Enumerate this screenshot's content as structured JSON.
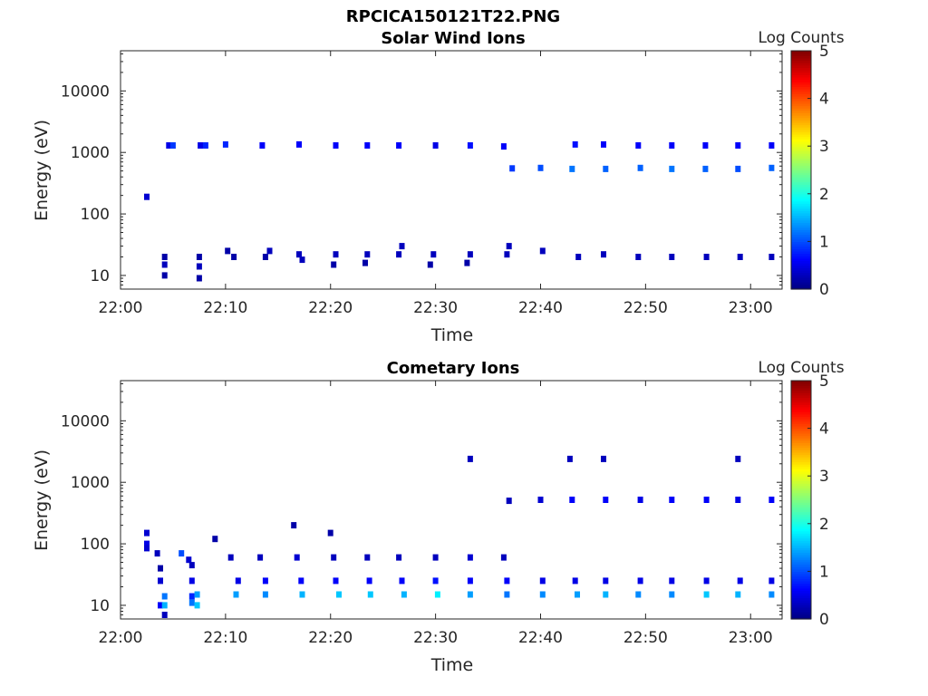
{
  "figure": {
    "title": "RPCICA150121T22.PNG"
  },
  "chart_data": [
    {
      "type": "heatmap",
      "title": "Solar Wind Ions",
      "xlabel": "Time",
      "ylabel": "Energy (eV)",
      "x_tick_labels": [
        "22:00",
        "22:10",
        "22:20",
        "22:30",
        "22:40",
        "22:50",
        "23:00"
      ],
      "x_ticks_min": [
        0,
        10,
        20,
        30,
        40,
        50,
        60
      ],
      "xlim_min": [
        0,
        63
      ],
      "y_tick_labels": [
        "10",
        "100",
        "1000",
        "10000"
      ],
      "y_ticks": [
        10,
        100,
        1000,
        10000
      ],
      "ylim": [
        6,
        45000
      ],
      "yscale": "log",
      "colorbar": {
        "label": "Log Counts",
        "range": [
          0,
          5
        ],
        "tick_labels": [
          "0",
          "1",
          "2",
          "3",
          "4",
          "5"
        ],
        "colormap": "jet"
      },
      "cells": [
        [
          2.5,
          190,
          0.4
        ],
        [
          4.2,
          10,
          0.2
        ],
        [
          4.2,
          15,
          0.3
        ],
        [
          4.2,
          20,
          0.2
        ],
        [
          7.5,
          9,
          0.2
        ],
        [
          7.5,
          14,
          0.3
        ],
        [
          7.5,
          20,
          0.2
        ],
        [
          4.6,
          1300,
          0.5
        ],
        [
          5.0,
          1300,
          0.9
        ],
        [
          7.6,
          1300,
          0.5
        ],
        [
          8.1,
          1300,
          0.8
        ],
        [
          10.0,
          1350,
          0.8
        ],
        [
          10.8,
          20,
          0.2
        ],
        [
          10.2,
          25,
          0.2
        ],
        [
          13.5,
          1300,
          0.6
        ],
        [
          13.8,
          20,
          0.2
        ],
        [
          14.2,
          25,
          0.3
        ],
        [
          17.0,
          1350,
          0.6
        ],
        [
          17.0,
          22,
          0.3
        ],
        [
          17.3,
          18,
          0.3
        ],
        [
          20.5,
          1300,
          0.6
        ],
        [
          20.5,
          22,
          0.3
        ],
        [
          20.3,
          15,
          0.2
        ],
        [
          23.5,
          1300,
          0.6
        ],
        [
          23.5,
          22,
          0.3
        ],
        [
          23.3,
          16,
          0.2
        ],
        [
          26.5,
          1300,
          0.6
        ],
        [
          26.5,
          22,
          0.3
        ],
        [
          26.8,
          30,
          0.3
        ],
        [
          30.0,
          1300,
          0.5
        ],
        [
          29.8,
          22,
          0.3
        ],
        [
          29.5,
          15,
          0.2
        ],
        [
          33.3,
          1300,
          0.7
        ],
        [
          33.3,
          22,
          0.3
        ],
        [
          33.0,
          16,
          0.2
        ],
        [
          36.5,
          1250,
          0.6
        ],
        [
          36.8,
          22,
          0.3
        ],
        [
          37.0,
          30,
          0.3
        ],
        [
          37.3,
          550,
          0.9
        ],
        [
          40.0,
          560,
          1.0
        ],
        [
          40.2,
          25,
          0.3
        ],
        [
          43.0,
          540,
          1.2
        ],
        [
          43.3,
          1350,
          0.7
        ],
        [
          43.6,
          20,
          0.3
        ],
        [
          46.2,
          540,
          1.1
        ],
        [
          46.0,
          1350,
          0.6
        ],
        [
          46.0,
          22,
          0.3
        ],
        [
          49.5,
          560,
          1.1
        ],
        [
          49.3,
          1300,
          0.6
        ],
        [
          49.3,
          20,
          0.3
        ],
        [
          52.5,
          540,
          1.2
        ],
        [
          52.5,
          1300,
          0.6
        ],
        [
          52.5,
          20,
          0.3
        ],
        [
          55.7,
          540,
          1.1
        ],
        [
          55.7,
          1300,
          0.6
        ],
        [
          55.8,
          20,
          0.3
        ],
        [
          58.8,
          540,
          1.0
        ],
        [
          58.8,
          1300,
          0.6
        ],
        [
          59.0,
          20,
          0.3
        ],
        [
          62.0,
          560,
          1.1
        ],
        [
          62.0,
          1300,
          0.6
        ],
        [
          62.0,
          20,
          0.3
        ]
      ]
    },
    {
      "type": "heatmap",
      "title": "Cometary Ions",
      "xlabel": "Time",
      "ylabel": "Energy (eV)",
      "x_tick_labels": [
        "22:00",
        "22:10",
        "22:20",
        "22:30",
        "22:40",
        "22:50",
        "23:00"
      ],
      "x_ticks_min": [
        0,
        10,
        20,
        30,
        40,
        50,
        60
      ],
      "xlim_min": [
        0,
        63
      ],
      "y_tick_labels": [
        "10",
        "100",
        "1000",
        "10000"
      ],
      "y_ticks": [
        10,
        100,
        1000,
        10000
      ],
      "ylim": [
        6,
        45000
      ],
      "yscale": "log",
      "colorbar": {
        "label": "Log Counts",
        "range": [
          0,
          5
        ],
        "tick_labels": [
          "0",
          "1",
          "2",
          "3",
          "4",
          "5"
        ],
        "colormap": "jet"
      },
      "cells": [
        [
          2.5,
          150,
          0.4
        ],
        [
          2.5,
          100,
          0.5
        ],
        [
          2.5,
          85,
          0.4
        ],
        [
          3.5,
          70,
          0.3
        ],
        [
          3.8,
          40,
          0.2
        ],
        [
          3.8,
          25,
          0.4
        ],
        [
          3.8,
          10,
          0.6
        ],
        [
          4.2,
          14,
          1.2
        ],
        [
          4.2,
          10,
          1.5
        ],
        [
          4.2,
          7,
          0.3
        ],
        [
          5.8,
          70,
          1.0
        ],
        [
          6.5,
          55,
          0.4
        ],
        [
          6.8,
          45,
          0.3
        ],
        [
          6.8,
          25,
          0.5
        ],
        [
          6.8,
          14,
          0.8
        ],
        [
          6.8,
          11,
          1.2
        ],
        [
          7.3,
          10,
          1.6
        ],
        [
          7.3,
          15,
          1.4
        ],
        [
          9.0,
          120,
          0.2
        ],
        [
          10.5,
          60,
          0.3
        ],
        [
          11.2,
          25,
          0.5
        ],
        [
          11.0,
          15,
          1.4
        ],
        [
          13.3,
          60,
          0.3
        ],
        [
          13.8,
          25,
          0.6
        ],
        [
          13.8,
          15,
          1.3
        ],
        [
          16.5,
          200,
          0.2
        ],
        [
          16.8,
          60,
          0.4
        ],
        [
          17.2,
          25,
          0.6
        ],
        [
          17.3,
          15,
          1.5
        ],
        [
          20.0,
          150,
          0.2
        ],
        [
          20.3,
          60,
          0.3
        ],
        [
          20.5,
          25,
          0.6
        ],
        [
          20.8,
          15,
          1.6
        ],
        [
          23.5,
          60,
          0.3
        ],
        [
          23.7,
          25,
          0.6
        ],
        [
          23.8,
          15,
          1.6
        ],
        [
          26.5,
          60,
          0.3
        ],
        [
          26.8,
          25,
          0.6
        ],
        [
          27.0,
          15,
          1.5
        ],
        [
          30.0,
          60,
          0.3
        ],
        [
          30.0,
          25,
          0.7
        ],
        [
          30.2,
          15,
          1.8
        ],
        [
          33.3,
          2400,
          0.3
        ],
        [
          33.3,
          60,
          0.4
        ],
        [
          33.3,
          25,
          0.6
        ],
        [
          33.3,
          15,
          1.4
        ],
        [
          36.5,
          60,
          0.3
        ],
        [
          36.8,
          25,
          0.6
        ],
        [
          36.8,
          15,
          1.2
        ],
        [
          37.0,
          500,
          0.3
        ],
        [
          40.0,
          520,
          0.4
        ],
        [
          40.2,
          25,
          0.5
        ],
        [
          40.2,
          15,
          1.3
        ],
        [
          42.8,
          2400,
          0.3
        ],
        [
          43.0,
          520,
          0.6
        ],
        [
          43.3,
          25,
          0.5
        ],
        [
          43.5,
          15,
          1.4
        ],
        [
          46.0,
          2400,
          0.3
        ],
        [
          46.2,
          520,
          0.6
        ],
        [
          46.2,
          25,
          0.5
        ],
        [
          46.2,
          15,
          1.5
        ],
        [
          49.5,
          520,
          0.5
        ],
        [
          49.5,
          25,
          0.5
        ],
        [
          49.3,
          15,
          1.3
        ],
        [
          52.5,
          520,
          0.6
        ],
        [
          52.5,
          25,
          0.5
        ],
        [
          52.5,
          15,
          1.3
        ],
        [
          55.8,
          520,
          0.6
        ],
        [
          55.8,
          25,
          0.5
        ],
        [
          55.8,
          15,
          1.6
        ],
        [
          58.8,
          2400,
          0.3
        ],
        [
          58.8,
          520,
          0.5
        ],
        [
          59.0,
          25,
          0.5
        ],
        [
          58.8,
          15,
          1.5
        ],
        [
          62.0,
          520,
          0.6
        ],
        [
          62.0,
          25,
          0.5
        ],
        [
          62.0,
          15,
          1.3
        ]
      ]
    }
  ]
}
